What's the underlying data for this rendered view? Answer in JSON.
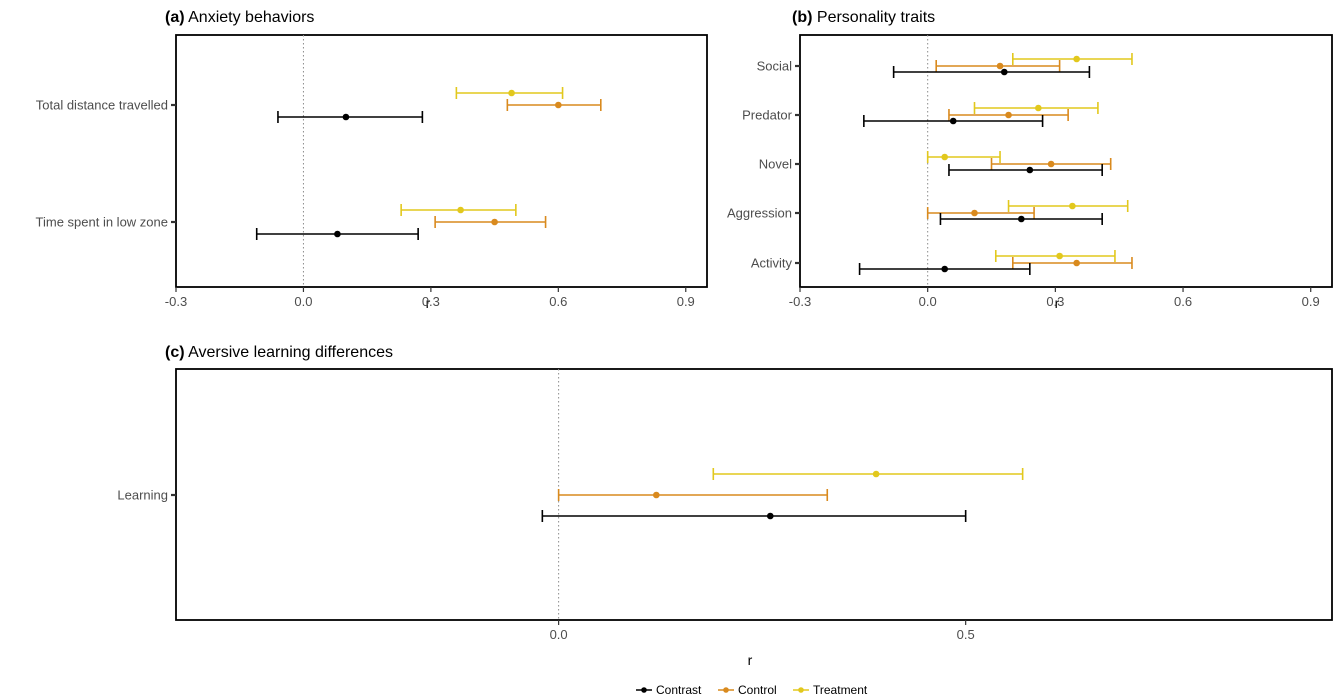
{
  "colors": {
    "Contrast": "#000000",
    "Control": "#D98A1E",
    "Treatment": "#E2C81D"
  },
  "legend": {
    "items": [
      "Contrast",
      "Control",
      "Treatment"
    ],
    "position": "bottom"
  },
  "chart_data": [
    {
      "type": "scatter",
      "panel": "(a)",
      "title": "Anxiety behaviors",
      "xlabel": "r",
      "ylabel": "",
      "xlim": [
        -0.3,
        0.95
      ],
      "xticks": [
        "-0.3",
        "0.0",
        "0.3",
        "0.6",
        "0.9"
      ],
      "reference_line_x": 0,
      "categories": [
        "Total distance travelled",
        "Time spent in low zone"
      ],
      "series": [
        {
          "name": "Treatment",
          "values": [
            0.49,
            0.37
          ],
          "ci_low": [
            0.36,
            0.23
          ],
          "ci_high": [
            0.61,
            0.5
          ]
        },
        {
          "name": "Control",
          "values": [
            0.6,
            0.45
          ],
          "ci_low": [
            0.48,
            0.31
          ],
          "ci_high": [
            0.7,
            0.57
          ]
        },
        {
          "name": "Contrast",
          "values": [
            0.1,
            0.08
          ],
          "ci_low": [
            -0.06,
            -0.11
          ],
          "ci_high": [
            0.28,
            0.27
          ]
        }
      ]
    },
    {
      "type": "scatter",
      "panel": "(b)",
      "title": "Personality traits",
      "xlabel": "r",
      "ylabel": "",
      "xlim": [
        -0.3,
        0.95
      ],
      "xticks": [
        "-0.3",
        "0.0",
        "0.3",
        "0.6",
        "0.9"
      ],
      "reference_line_x": 0,
      "categories": [
        "Social",
        "Predator",
        "Novel",
        "Aggression",
        "Activity"
      ],
      "series": [
        {
          "name": "Treatment",
          "values": [
            0.35,
            0.26,
            0.04,
            0.34,
            0.31
          ],
          "ci_low": [
            0.2,
            0.11,
            0.0,
            0.19,
            0.16
          ],
          "ci_high": [
            0.48,
            0.4,
            0.17,
            0.47,
            0.44
          ]
        },
        {
          "name": "Control",
          "values": [
            0.17,
            0.19,
            0.29,
            0.11,
            0.35
          ],
          "ci_low": [
            0.02,
            0.05,
            0.15,
            0.0,
            0.2
          ],
          "ci_high": [
            0.31,
            0.33,
            0.43,
            0.25,
            0.48
          ]
        },
        {
          "name": "Contrast",
          "values": [
            0.18,
            0.06,
            0.24,
            0.22,
            0.04
          ],
          "ci_low": [
            -0.08,
            -0.15,
            0.05,
            0.03,
            -0.16
          ],
          "ci_high": [
            0.38,
            0.27,
            0.41,
            0.41,
            0.24
          ]
        }
      ]
    },
    {
      "type": "scatter",
      "panel": "(c)",
      "title": "Aversive learning differences",
      "xlabel": "r",
      "ylabel": "",
      "xlim": [
        -0.47,
        0.95
      ],
      "xticks": [
        "0.0",
        "0.5"
      ],
      "reference_line_x": 0,
      "categories": [
        "Learning"
      ],
      "series": [
        {
          "name": "Treatment",
          "values": [
            0.39
          ],
          "ci_low": [
            0.19
          ],
          "ci_high": [
            0.57
          ]
        },
        {
          "name": "Control",
          "values": [
            0.12
          ],
          "ci_low": [
            0.0
          ],
          "ci_high": [
            0.33
          ]
        },
        {
          "name": "Contrast",
          "values": [
            0.26
          ],
          "ci_low": [
            -0.02
          ],
          "ci_high": [
            0.5
          ]
        }
      ]
    }
  ]
}
